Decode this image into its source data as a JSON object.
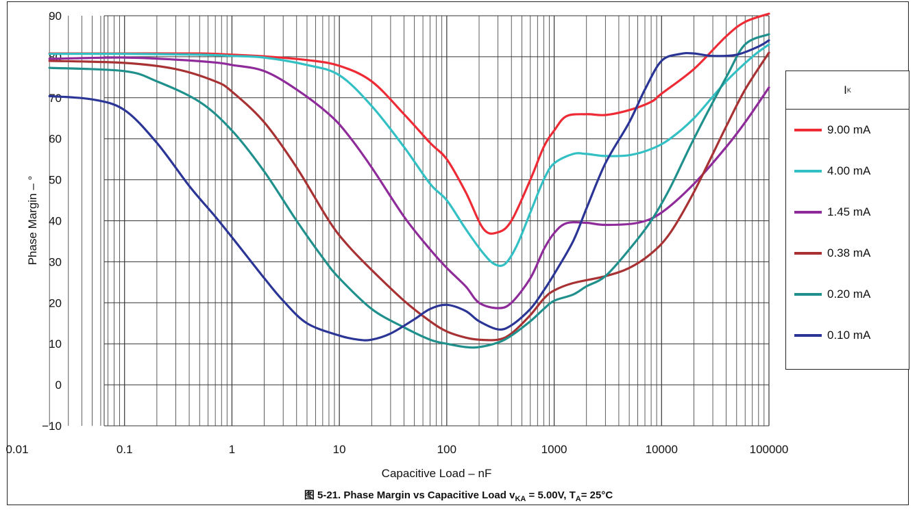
{
  "caption": {
    "prefix": "图 5-21. Phase Margin vs Capacitive Load v",
    "sub1": "KA",
    "mid": " = 5.00V, T",
    "sub2": "A",
    "suffix": "= 25°C"
  },
  "legend": {
    "title_main": "I",
    "title_sub": "K"
  },
  "chart_data": {
    "type": "line",
    "xlabel": "Capacitive Load – nF",
    "ylabel": "Phase Margin – °",
    "xscale": "log",
    "xlim": [
      0.01,
      100000
    ],
    "ylim": [
      -10,
      90
    ],
    "xticks": [
      "0.01",
      "0.1",
      "1",
      "10",
      "100",
      "1000",
      "10000",
      "100000"
    ],
    "yticks": [
      "−10",
      "0",
      "10",
      "20",
      "30",
      "40",
      "50",
      "60",
      "70",
      "80",
      "90"
    ],
    "grid": true,
    "legend_position": "right",
    "series": [
      {
        "name": "9.00 mA",
        "color": "#ee2a35",
        "points": [
          [
            0.02,
            80.8
          ],
          [
            0.1,
            80.8
          ],
          [
            0.5,
            80.8
          ],
          [
            1,
            80.5
          ],
          [
            2,
            80.1
          ],
          [
            5,
            79.2
          ],
          [
            10,
            77.8
          ],
          [
            20,
            74
          ],
          [
            40,
            66
          ],
          [
            70,
            59
          ],
          [
            100,
            55
          ],
          [
            150,
            47
          ],
          [
            220,
            38
          ],
          [
            300,
            37.2
          ],
          [
            400,
            40
          ],
          [
            600,
            50
          ],
          [
            800,
            58
          ],
          [
            1000,
            62
          ],
          [
            1300,
            65.5
          ],
          [
            2000,
            66
          ],
          [
            3000,
            65.8
          ],
          [
            5000,
            67
          ],
          [
            8000,
            69
          ],
          [
            10000,
            71
          ],
          [
            20000,
            77
          ],
          [
            40000,
            85
          ],
          [
            60000,
            88.5
          ],
          [
            100000,
            90.5
          ]
        ]
      },
      {
        "name": "4.00 mA",
        "color": "#32c0c4",
        "points": [
          [
            0.02,
            80.7
          ],
          [
            0.1,
            80.7
          ],
          [
            0.5,
            80.5
          ],
          [
            1,
            80.2
          ],
          [
            2,
            79.8
          ],
          [
            5,
            78
          ],
          [
            10,
            75.5
          ],
          [
            20,
            68
          ],
          [
            40,
            58
          ],
          [
            70,
            49
          ],
          [
            100,
            45
          ],
          [
            150,
            38
          ],
          [
            220,
            32
          ],
          [
            280,
            29.4
          ],
          [
            350,
            29.5
          ],
          [
            450,
            34
          ],
          [
            600,
            42
          ],
          [
            800,
            50
          ],
          [
            1000,
            54
          ],
          [
            1500,
            56.3
          ],
          [
            2000,
            56.3
          ],
          [
            3000,
            55.8
          ],
          [
            5000,
            56
          ],
          [
            8000,
            57.5
          ],
          [
            12000,
            60
          ],
          [
            20000,
            65
          ],
          [
            40000,
            74
          ],
          [
            70000,
            80
          ],
          [
            100000,
            83
          ]
        ]
      },
      {
        "name": "1.45 mA",
        "color": "#8e2a99",
        "points": [
          [
            0.02,
            79.5
          ],
          [
            0.1,
            79.8
          ],
          [
            0.3,
            79.3
          ],
          [
            0.7,
            78.6
          ],
          [
            1,
            78
          ],
          [
            2,
            76.5
          ],
          [
            4,
            72
          ],
          [
            8,
            66
          ],
          [
            12,
            61
          ],
          [
            20,
            53
          ],
          [
            40,
            41
          ],
          [
            70,
            33
          ],
          [
            100,
            28.5
          ],
          [
            150,
            24
          ],
          [
            200,
            20
          ],
          [
            300,
            18.7
          ],
          [
            400,
            20
          ],
          [
            600,
            26
          ],
          [
            800,
            33
          ],
          [
            1000,
            37
          ],
          [
            1300,
            39.4
          ],
          [
            2000,
            39.5
          ],
          [
            3000,
            39
          ],
          [
            6000,
            39.5
          ],
          [
            10000,
            42
          ],
          [
            20000,
            49
          ],
          [
            40000,
            58
          ],
          [
            60000,
            64
          ],
          [
            100000,
            72.5
          ]
        ]
      },
      {
        "name": "0.38 mA",
        "color": "#a83233",
        "points": [
          [
            0.02,
            79
          ],
          [
            0.1,
            78.5
          ],
          [
            0.3,
            77
          ],
          [
            0.7,
            74
          ],
          [
            1,
            71.5
          ],
          [
            2,
            64
          ],
          [
            4,
            53
          ],
          [
            8,
            40
          ],
          [
            12,
            34
          ],
          [
            20,
            28
          ],
          [
            40,
            20.5
          ],
          [
            70,
            15.5
          ],
          [
            100,
            13
          ],
          [
            150,
            11.5
          ],
          [
            200,
            11
          ],
          [
            300,
            11
          ],
          [
            400,
            12.5
          ],
          [
            600,
            17
          ],
          [
            800,
            21
          ],
          [
            1000,
            23
          ],
          [
            1500,
            24.8
          ],
          [
            3000,
            26.5
          ],
          [
            5000,
            28.5
          ],
          [
            8000,
            32
          ],
          [
            12000,
            37
          ],
          [
            20000,
            47
          ],
          [
            40000,
            63
          ],
          [
            60000,
            72
          ],
          [
            100000,
            81
          ]
        ]
      },
      {
        "name": "0.20 mA",
        "color": "#20908c",
        "points": [
          [
            0.02,
            77.3
          ],
          [
            0.1,
            76.5
          ],
          [
            0.2,
            74
          ],
          [
            0.5,
            69
          ],
          [
            1,
            62
          ],
          [
            2,
            52
          ],
          [
            4,
            40
          ],
          [
            7,
            31
          ],
          [
            10,
            26
          ],
          [
            20,
            18.5
          ],
          [
            40,
            14
          ],
          [
            70,
            11
          ],
          [
            100,
            10
          ],
          [
            150,
            9.2
          ],
          [
            200,
            9.2
          ],
          [
            300,
            10.3
          ],
          [
            400,
            12
          ],
          [
            600,
            15.5
          ],
          [
            800,
            18.5
          ],
          [
            1000,
            20.5
          ],
          [
            1500,
            22
          ],
          [
            2000,
            24
          ],
          [
            3000,
            26.5
          ],
          [
            5000,
            33
          ],
          [
            8000,
            40
          ],
          [
            12000,
            48
          ],
          [
            20000,
            60
          ],
          [
            40000,
            75
          ],
          [
            60000,
            83
          ],
          [
            100000,
            85.5
          ]
        ]
      },
      {
        "name": "0.10 mA",
        "color": "#2b3596",
        "points": [
          [
            0.02,
            70.4
          ],
          [
            0.05,
            69.6
          ],
          [
            0.1,
            67
          ],
          [
            0.2,
            59
          ],
          [
            0.4,
            48.5
          ],
          [
            0.7,
            41
          ],
          [
            1,
            36
          ],
          [
            2,
            26
          ],
          [
            3,
            20.5
          ],
          [
            5,
            15
          ],
          [
            10,
            12
          ],
          [
            15,
            11
          ],
          [
            20,
            11
          ],
          [
            30,
            12.5
          ],
          [
            50,
            16
          ],
          [
            70,
            18.5
          ],
          [
            100,
            19.5
          ],
          [
            150,
            18
          ],
          [
            200,
            15.5
          ],
          [
            300,
            13.5
          ],
          [
            400,
            14.5
          ],
          [
            600,
            18.5
          ],
          [
            800,
            23
          ],
          [
            1000,
            27
          ],
          [
            1500,
            35
          ],
          [
            2000,
            43
          ],
          [
            3000,
            54
          ],
          [
            5000,
            64
          ],
          [
            7000,
            72
          ],
          [
            10000,
            79
          ],
          [
            15000,
            80.7
          ],
          [
            20000,
            80.8
          ],
          [
            30000,
            80.2
          ],
          [
            50000,
            80.5
          ],
          [
            80000,
            82.5
          ],
          [
            100000,
            84
          ]
        ]
      }
    ]
  }
}
